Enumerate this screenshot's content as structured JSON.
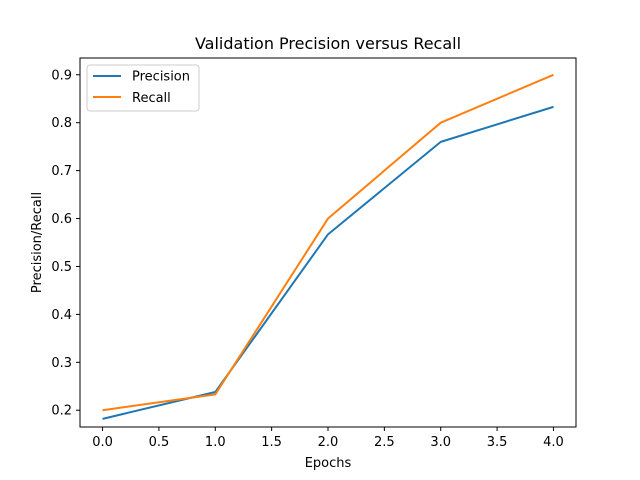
{
  "chart_data": {
    "type": "line",
    "title": "Validation Precision versus Recall",
    "xlabel": "Epochs",
    "ylabel": "Precision/Recall",
    "x": [
      0,
      1,
      2,
      3,
      4
    ],
    "xlim": [
      -0.2,
      4.2
    ],
    "ylim": [
      0.165,
      0.935
    ],
    "xticks": [
      "0.0",
      "0.5",
      "1.0",
      "1.5",
      "2.0",
      "2.5",
      "3.0",
      "3.5",
      "4.0"
    ],
    "yticks": [
      "0.2",
      "0.3",
      "0.4",
      "0.5",
      "0.6",
      "0.7",
      "0.8",
      "0.9"
    ],
    "grid": false,
    "legend_position": "top-left",
    "series": [
      {
        "name": "Precision",
        "color": "#1f77b4",
        "values": [
          0.182,
          0.238,
          0.567,
          0.76,
          0.833
        ]
      },
      {
        "name": "Recall",
        "color": "#ff7f0e",
        "values": [
          0.2,
          0.233,
          0.6,
          0.8,
          0.9
        ]
      }
    ]
  }
}
